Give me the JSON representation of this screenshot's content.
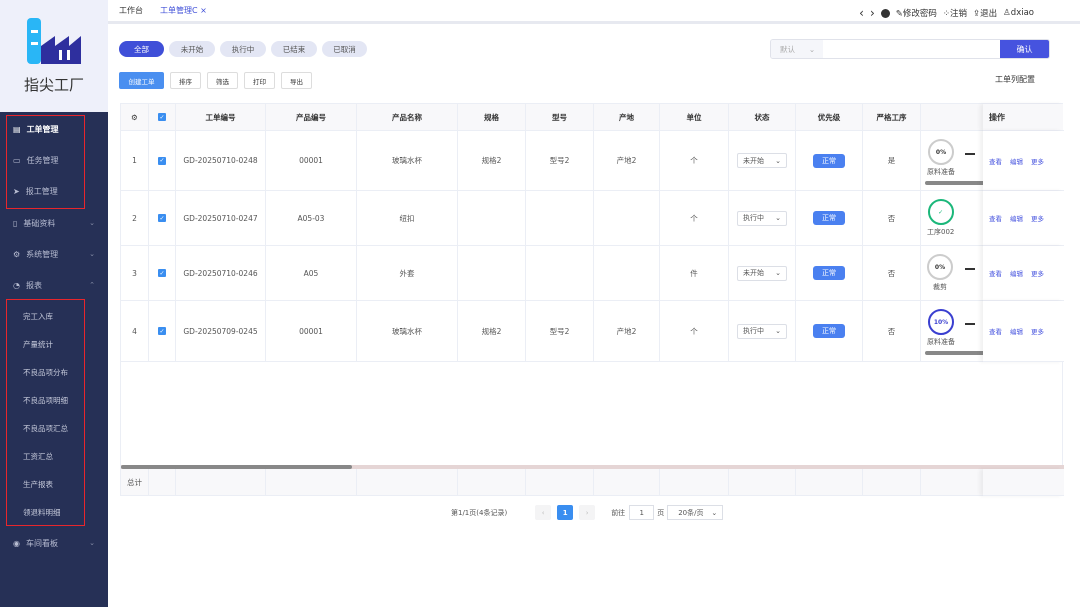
{
  "app": {
    "title": "指尖工厂"
  },
  "sidebar": {
    "items": [
      {
        "label": "工单管理",
        "icon": "document-icon",
        "active": true
      },
      {
        "label": "任务管理",
        "icon": "monitor-icon"
      },
      {
        "label": "报工管理",
        "icon": "send-icon"
      },
      {
        "label": "基础资料",
        "icon": "book-icon",
        "chevron": "⌄"
      },
      {
        "label": "系统管理",
        "icon": "gear-icon",
        "chevron": "⌄"
      },
      {
        "label": "报表",
        "icon": "pie-chart-icon",
        "chevron": "⌃"
      }
    ],
    "report_items": [
      "完工入库",
      "产量统计",
      "不良品项分布",
      "不良品项明细",
      "不良品项汇总",
      "工资汇总",
      "生产报表",
      "领退料明细"
    ],
    "bottom": {
      "label": "车间看板",
      "icon": "eye-icon",
      "chevron": "⌄"
    }
  },
  "tabs": {
    "home": "工作台",
    "current": "工单管理",
    "refresh": "C",
    "close": "×"
  },
  "header": {
    "back": "‹",
    "forward": "›",
    "change_pwd": "修改密码",
    "logout_cancel": "注销",
    "exit": "退出",
    "user": "dxiao"
  },
  "filters": [
    "全部",
    "未开始",
    "执行中",
    "已结束",
    "已取消"
  ],
  "toolbar": {
    "create": "创建工单",
    "sort": "排序",
    "filter": "筛选",
    "print": "打印",
    "export": "导出",
    "column_config": "工单列配置"
  },
  "search": {
    "select": "默认",
    "placeholder": "",
    "confirm": "确认"
  },
  "table": {
    "headers": [
      "",
      "",
      "工单编号",
      "产品编号",
      "产品名称",
      "规格",
      "型号",
      "产地",
      "单位",
      "状态",
      "优先级",
      "严格工序",
      "",
      "操作"
    ],
    "rows": [
      {
        "idx": "1",
        "order": "GD-20250710-0248",
        "product_no": "00001",
        "product_name": "玻璃水杯",
        "spec": "规格2",
        "model": "型号2",
        "origin": "产地2",
        "unit": "个",
        "status": "未开始",
        "priority": "正常",
        "strict": "是",
        "process": {
          "pct": "0%",
          "label": "原料准备",
          "color": "#cccccc",
          "bar": true,
          "more": true
        }
      },
      {
        "idx": "2",
        "order": "GD-20250710-0247",
        "product_no": "A05-03",
        "product_name": "纽扣",
        "spec": "",
        "model": "",
        "origin": "",
        "unit": "个",
        "status": "执行中",
        "priority": "正常",
        "strict": "否",
        "process": {
          "pct": "✓",
          "label": "工序002",
          "color": "#1bb77a",
          "bar": false,
          "more": false
        }
      },
      {
        "idx": "3",
        "order": "GD-20250710-0246",
        "product_no": "A05",
        "product_name": "外套",
        "spec": "",
        "model": "",
        "origin": "",
        "unit": "件",
        "status": "未开始",
        "priority": "正常",
        "strict": "否",
        "process": {
          "pct": "0%",
          "label": "裁剪",
          "color": "#cccccc",
          "bar": false,
          "more": true
        }
      },
      {
        "idx": "4",
        "order": "GD-20250709-0245",
        "product_no": "00001",
        "product_name": "玻璃水杯",
        "spec": "规格2",
        "model": "型号2",
        "origin": "产地2",
        "unit": "个",
        "status": "执行中",
        "priority": "正常",
        "strict": "否",
        "process": {
          "pct": "10%",
          "label": "原料准备",
          "color": "#3a3fd0",
          "bar": true,
          "more": true
        }
      }
    ],
    "actions": [
      "查看",
      "编辑",
      "更多"
    ],
    "total_label": "总计"
  },
  "pagination": {
    "summary": "第1/1页(4条记录)",
    "current": "1",
    "goto_label": "前往",
    "goto_value": "1",
    "page_unit": "页",
    "page_size": "20条/页"
  }
}
